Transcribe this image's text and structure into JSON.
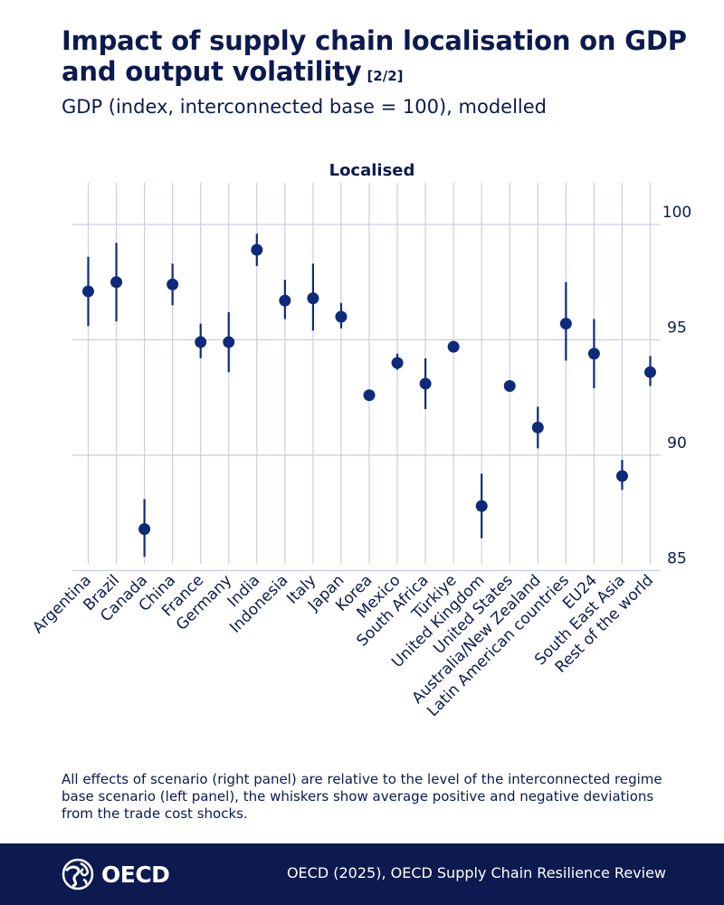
{
  "title": "Impact of supply chain localisation on GDP and output volatility",
  "part": "[2/2]",
  "subtitle": "GDP (index, interconnected base = 100), modelled",
  "note": "All effects of scenario (right panel) are relative to the level of the interconnected regime base scenario (left panel), the whiskers show average positive and negative deviations from the trade cost shocks.",
  "footer": {
    "logo_text": "OECD",
    "source": "OECD (2025), OECD Supply Chain Resilience Review"
  },
  "colors": {
    "primary": "#0c1a4f",
    "point": "#0e2a7a",
    "grid": "#c9cfdd"
  },
  "chart_data": {
    "type": "scatter",
    "panel_title": "Localised",
    "ylim": [
      84,
      102
    ],
    "yticks": [
      85,
      90,
      95,
      100
    ],
    "y_axis_side": "right",
    "grid": true,
    "categories": [
      "Argentina",
      "Brazil",
      "Canada",
      "China",
      "France",
      "Germany",
      "India",
      "Indonesia",
      "Italy",
      "Japan",
      "Korea",
      "Mexico",
      "South Africa",
      "Türkiye",
      "United Kingdom",
      "United States",
      "Australia/New Zealand",
      "Latin American countries",
      "EU24",
      "South East Asia",
      "Rest of the world"
    ],
    "series": [
      {
        "name": "GDP index",
        "values": [
          97.1,
          97.5,
          86.8,
          97.4,
          94.9,
          94.9,
          98.9,
          96.7,
          96.8,
          96.0,
          92.6,
          94.0,
          93.1,
          94.7,
          87.8,
          93.0,
          91.2,
          95.7,
          94.4,
          89.1,
          93.6
        ]
      },
      {
        "name": "Whisker low",
        "values": [
          95.6,
          95.8,
          85.6,
          96.5,
          94.2,
          93.6,
          98.2,
          95.9,
          95.4,
          95.5,
          92.5,
          93.7,
          92.0,
          94.6,
          86.4,
          92.9,
          90.3,
          94.1,
          92.9,
          88.5,
          93.0
        ]
      },
      {
        "name": "Whisker high",
        "values": [
          98.6,
          99.2,
          88.1,
          98.3,
          95.7,
          96.2,
          99.6,
          97.6,
          98.3,
          96.6,
          92.7,
          94.4,
          94.2,
          94.8,
          89.2,
          93.1,
          92.1,
          97.5,
          95.9,
          89.8,
          94.3
        ]
      }
    ]
  }
}
